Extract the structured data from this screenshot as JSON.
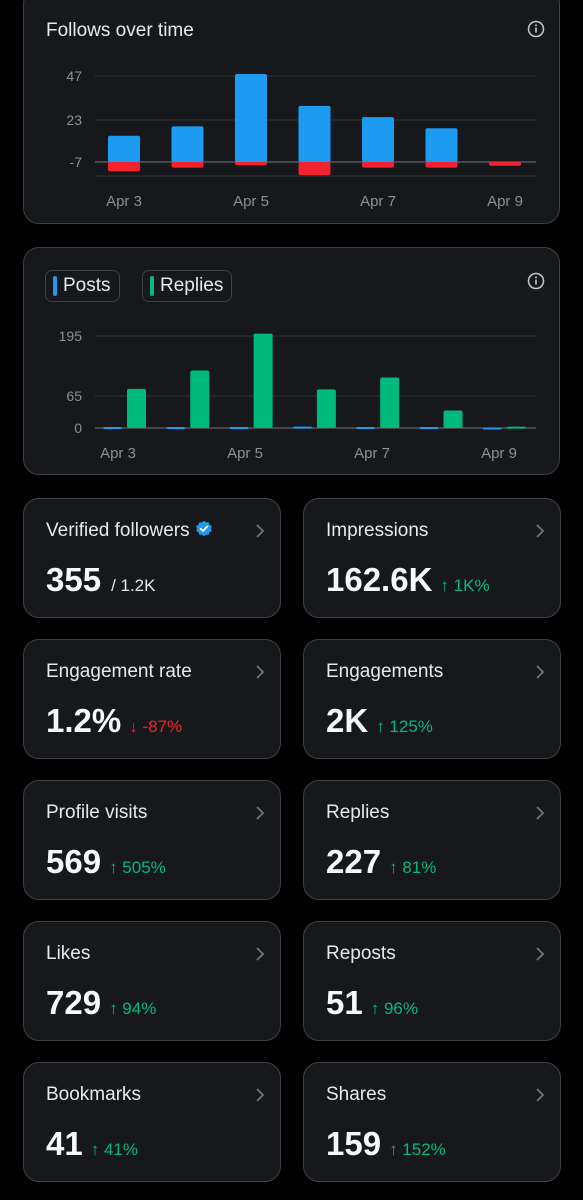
{
  "follows_card": {
    "title": "Follows over time",
    "icon": "info-icon"
  },
  "posts_card": {
    "legend": [
      {
        "label": "Posts",
        "color": "#1d9bf0"
      },
      {
        "label": "Replies",
        "color": "#00ba7c"
      }
    ],
    "icon": "info-icon"
  },
  "chart_data": [
    {
      "type": "bar",
      "title": "Follows over time",
      "categories": [
        "Apr 3",
        "Apr 4",
        "Apr 5",
        "Apr 6",
        "Apr 7",
        "Apr 8",
        "Apr 9"
      ],
      "tick_labels_x": [
        "Apr 3",
        "Apr 5",
        "Apr 7",
        "Apr 9"
      ],
      "tick_labels_y": [
        "47",
        "23",
        "-7"
      ],
      "ylim": [
        -7,
        47
      ],
      "series": [
        {
          "color": "#1d9bf0",
          "values": [
            14,
            19,
            47,
            30,
            24,
            18,
            0
          ]
        },
        {
          "color": "#f4212e",
          "values": [
            -5,
            -3,
            0,
            -7,
            -3,
            -3,
            -2
          ]
        }
      ],
      "grid": true
    },
    {
      "type": "bar",
      "categories": [
        "Apr 3",
        "Apr 4",
        "Apr 5",
        "Apr 6",
        "Apr 7",
        "Apr 8",
        "Apr 9"
      ],
      "tick_labels_x": [
        "Apr 3",
        "Apr 5",
        "Apr 7",
        "Apr 9"
      ],
      "tick_labels_y": [
        "195",
        "65",
        "0"
      ],
      "ylim": [
        0,
        195
      ],
      "series": [
        {
          "name": "Posts",
          "color": "#1d9bf0",
          "values": [
            2,
            2,
            2,
            3,
            2,
            2,
            1
          ]
        },
        {
          "name": "Replies",
          "color": "#00ba7c",
          "values": [
            83,
            122,
            200,
            82,
            107,
            37,
            3
          ]
        }
      ],
      "grid": true,
      "legend": "top-left"
    }
  ],
  "stats": [
    {
      "label": "Verified followers",
      "value": "355",
      "sub": "/ 1.2K",
      "verified_icon": "verified-badge-icon"
    },
    {
      "label": "Impressions",
      "value": "162.6K",
      "change": "↑ 1K%",
      "direction": "up"
    },
    {
      "label": "Engagement rate",
      "value": "1.2%",
      "change": "↓ -87%",
      "direction": "down"
    },
    {
      "label": "Engagements",
      "value": "2K",
      "change": "↑ 125%",
      "direction": "up"
    },
    {
      "label": "Profile visits",
      "value": "569",
      "change": "↑ 505%",
      "direction": "up"
    },
    {
      "label": "Replies",
      "value": "227",
      "change": "↑ 81%",
      "direction": "up"
    },
    {
      "label": "Likes",
      "value": "729",
      "change": "↑ 94%",
      "direction": "up"
    },
    {
      "label": "Reposts",
      "value": "51",
      "change": "↑ 96%",
      "direction": "up"
    },
    {
      "label": "Bookmarks",
      "value": "41",
      "change": "↑ 41%",
      "direction": "up"
    },
    {
      "label": "Shares",
      "value": "159",
      "change": "↑ 152%",
      "direction": "up"
    }
  ]
}
